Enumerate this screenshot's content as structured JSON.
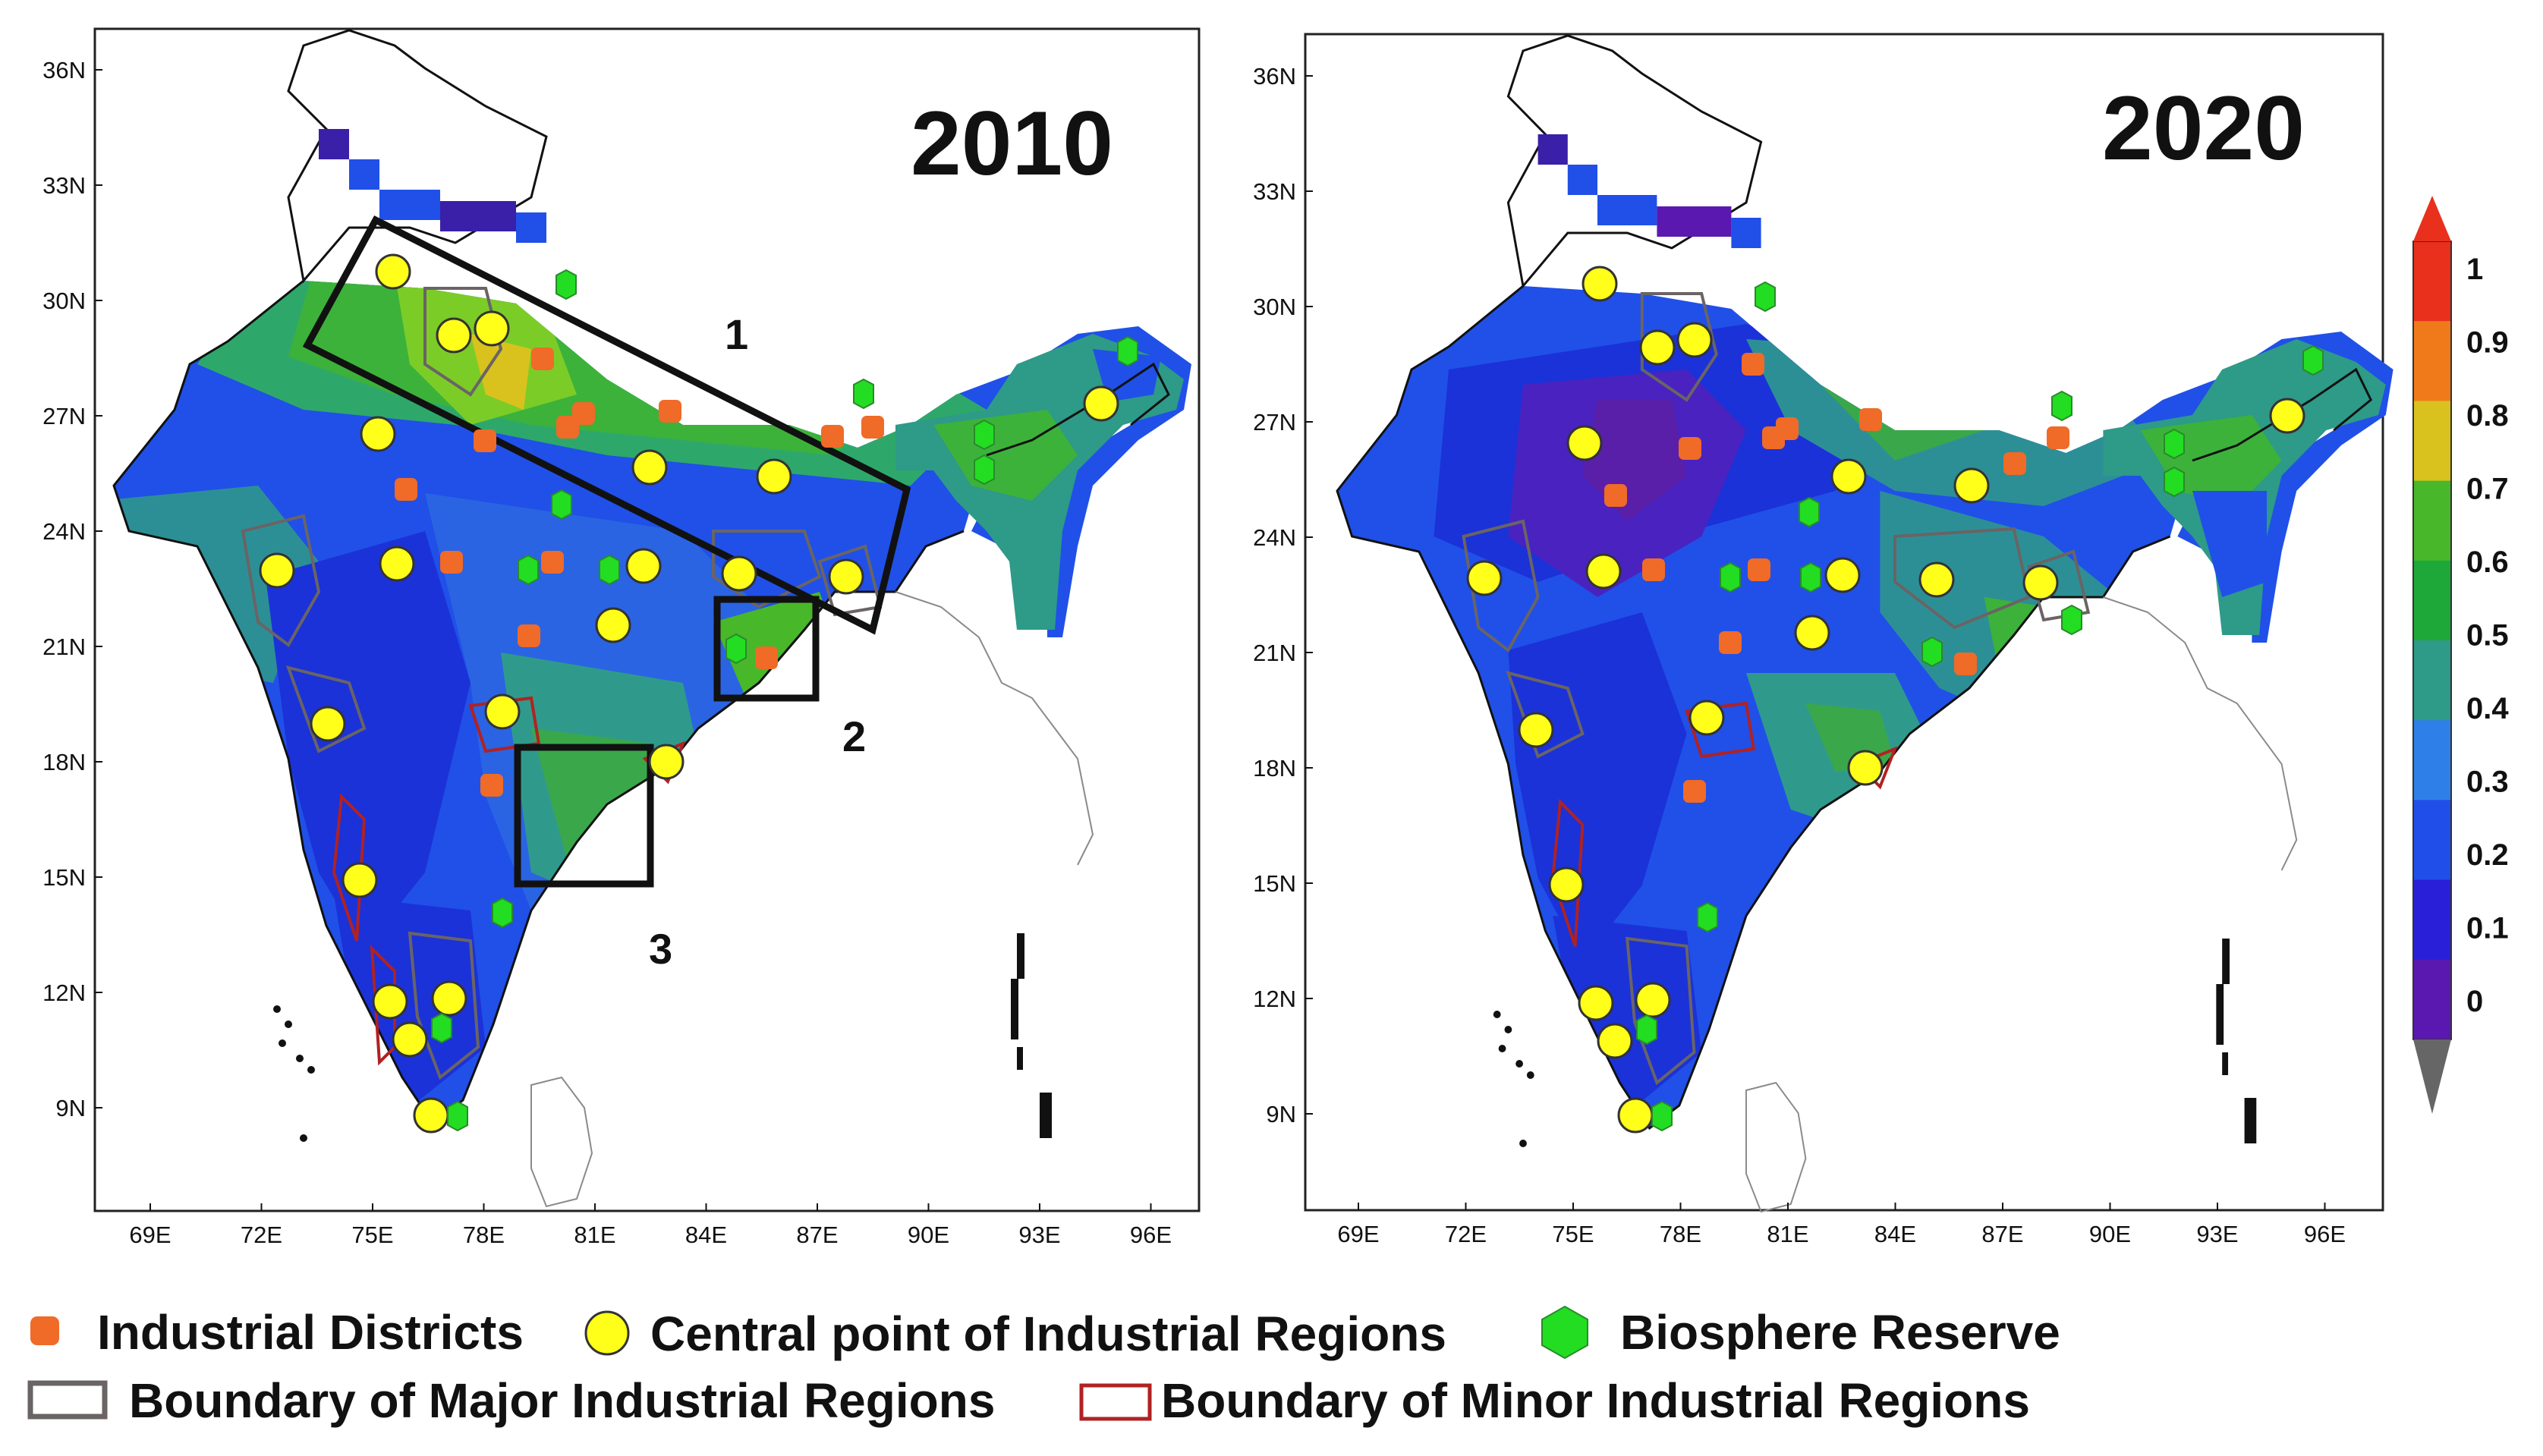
{
  "panels": [
    {
      "year": "2010",
      "zones": [
        "1",
        "2",
        "3"
      ]
    },
    {
      "year": "2020",
      "zones": []
    }
  ],
  "x_ticks": [
    "69E",
    "72E",
    "75E",
    "78E",
    "81E",
    "84E",
    "87E",
    "90E",
    "93E",
    "96E"
  ],
  "y_ticks": [
    "36N",
    "33N",
    "30N",
    "27N",
    "24N",
    "21N",
    "18N",
    "15N",
    "12N",
    "9N"
  ],
  "colorbar": {
    "ticks": [
      "1",
      "0.9",
      "0.8",
      "0.7",
      "0.6",
      "0.5",
      "0.4",
      "0.3",
      "0.2",
      "0.1",
      "0"
    ],
    "colors": [
      "#e8301c",
      "#f07a1a",
      "#d9c21e",
      "#48b72a",
      "#1fa83a",
      "#2e9a88",
      "#2f7fe8",
      "#1f4fe8",
      "#2a1fd8",
      "#5a18b0",
      "#666666"
    ]
  },
  "legend": {
    "industrial_districts": "Industrial Districts",
    "central_points": "Central point of Industrial Regions",
    "biosphere_reserve": "Biosphere Reserve",
    "major_boundary": "Boundary of Major Industrial Regions",
    "minor_boundary": "Boundary of Minor Industrial Regions"
  },
  "colors": {
    "district": "#f06a28",
    "central": "#ffff1a",
    "reserve": "#22dd22",
    "major": "#6a6464",
    "minor": "#b02222"
  }
}
